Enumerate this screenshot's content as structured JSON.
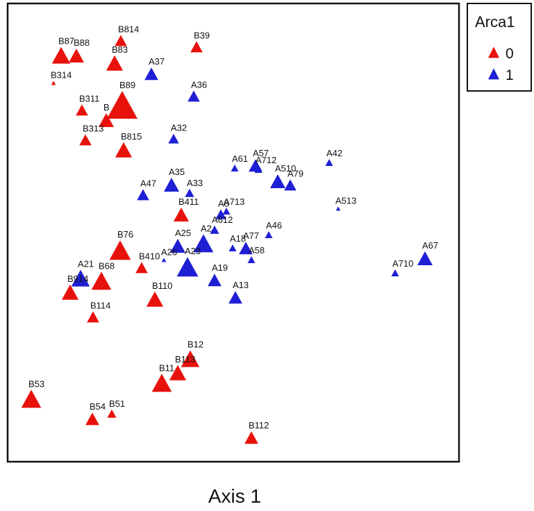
{
  "chart_data": {
    "type": "scatter",
    "xlabel": "Axis 1",
    "xlim": [
      0,
      650
    ],
    "ylim": [
      0,
      660
    ],
    "legend": {
      "title": "Arca1",
      "placement": "right",
      "entries": [
        {
          "label": "0",
          "color": "#e8120c"
        },
        {
          "label": "1",
          "color": "#1f1fd6"
        }
      ]
    },
    "series": [
      {
        "name": "0",
        "color": "#e8120c",
        "points": [
          {
            "label": "B814",
            "x": 163,
            "y": 605,
            "s": 0.8
          },
          {
            "label": "B87",
            "x": 77,
            "y": 583,
            "s": 1.2
          },
          {
            "label": "B88",
            "x": 99,
            "y": 583,
            "s": 1.0
          },
          {
            "label": "B83",
            "x": 154,
            "y": 572,
            "s": 1.1
          },
          {
            "label": "B39",
            "x": 272,
            "y": 596,
            "s": 0.8
          },
          {
            "label": "B314",
            "x": 66,
            "y": 545,
            "s": 0.3
          },
          {
            "label": "B311",
            "x": 107,
            "y": 505,
            "s": 0.8
          },
          {
            "label": "B89",
            "x": 165,
            "y": 510,
            "s": 2.0
          },
          {
            "label": "B",
            "x": 142,
            "y": 490,
            "s": 1.0
          },
          {
            "label": "B313",
            "x": 112,
            "y": 462,
            "s": 0.8
          },
          {
            "label": "B815",
            "x": 167,
            "y": 447,
            "s": 1.1
          },
          {
            "label": "B411",
            "x": 250,
            "y": 354,
            "s": 1.0
          },
          {
            "label": "B76",
            "x": 162,
            "y": 302,
            "s": 1.4
          },
          {
            "label": "B410",
            "x": 193,
            "y": 278,
            "s": 0.8
          },
          {
            "label": "B68",
            "x": 135,
            "y": 258,
            "s": 1.3
          },
          {
            "label": "B914",
            "x": 90,
            "y": 242,
            "s": 1.1
          },
          {
            "label": "B110",
            "x": 212,
            "y": 232,
            "s": 1.1
          },
          {
            "label": "B114",
            "x": 123,
            "y": 207,
            "s": 0.8
          },
          {
            "label": "B12",
            "x": 263,
            "y": 146,
            "s": 1.2
          },
          {
            "label": "B113",
            "x": 245,
            "y": 126,
            "s": 1.1
          },
          {
            "label": "B11",
            "x": 222,
            "y": 111,
            "s": 1.3
          },
          {
            "label": "B53",
            "x": 34,
            "y": 88,
            "s": 1.3
          },
          {
            "label": "B54",
            "x": 122,
            "y": 60,
            "s": 0.9
          },
          {
            "label": "B51",
            "x": 150,
            "y": 68,
            "s": 0.6
          },
          {
            "label": "B112",
            "x": 351,
            "y": 33,
            "s": 0.9
          }
        ]
      },
      {
        "name": "1",
        "color": "#1f1fd6",
        "points": [
          {
            "label": "A37",
            "x": 207,
            "y": 557,
            "s": 0.9
          },
          {
            "label": "A36",
            "x": 268,
            "y": 525,
            "s": 0.8
          },
          {
            "label": "A32",
            "x": 239,
            "y": 464,
            "s": 0.7
          },
          {
            "label": "A61",
            "x": 327,
            "y": 422,
            "s": 0.5
          },
          {
            "label": "A57",
            "x": 357,
            "y": 425,
            "s": 0.9
          },
          {
            "label": "A712",
            "x": 361,
            "y": 420,
            "s": 0.5
          },
          {
            "label": "A42",
            "x": 463,
            "y": 430,
            "s": 0.5
          },
          {
            "label": "A510",
            "x": 389,
            "y": 402,
            "s": 1.0
          },
          {
            "label": "A79",
            "x": 407,
            "y": 397,
            "s": 0.8
          },
          {
            "label": "A35",
            "x": 236,
            "y": 397,
            "s": 1.0
          },
          {
            "label": "A47",
            "x": 195,
            "y": 383,
            "s": 0.8
          },
          {
            "label": "A33",
            "x": 262,
            "y": 386,
            "s": 0.6
          },
          {
            "label": "A513",
            "x": 476,
            "y": 364,
            "s": 0.3
          },
          {
            "label": "A713",
            "x": 315,
            "y": 360,
            "s": 0.5
          },
          {
            "label": "A8",
            "x": 307,
            "y": 355,
            "s": 0.7
          },
          {
            "label": "A46",
            "x": 376,
            "y": 326,
            "s": 0.5
          },
          {
            "label": "A612",
            "x": 298,
            "y": 333,
            "s": 0.6
          },
          {
            "label": "A25",
            "x": 245,
            "y": 309,
            "s": 1.0
          },
          {
            "label": "A18",
            "x": 324,
            "y": 307,
            "s": 0.5
          },
          {
            "label": "A77",
            "x": 343,
            "y": 306,
            "s": 0.9
          },
          {
            "label": "A2",
            "x": 282,
            "y": 312,
            "s": 1.3
          },
          {
            "label": "A58",
            "x": 351,
            "y": 290,
            "s": 0.5
          },
          {
            "label": "A26",
            "x": 225,
            "y": 290,
            "s": 0.3
          },
          {
            "label": "A23",
            "x": 259,
            "y": 278,
            "s": 1.4
          },
          {
            "label": "A67",
            "x": 601,
            "y": 291,
            "s": 1.0
          },
          {
            "label": "A710",
            "x": 558,
            "y": 271,
            "s": 0.5
          },
          {
            "label": "A21",
            "x": 105,
            "y": 262,
            "s": 1.2
          },
          {
            "label": "A19",
            "x": 298,
            "y": 260,
            "s": 0.9
          },
          {
            "label": "A13",
            "x": 328,
            "y": 235,
            "s": 0.9
          }
        ]
      }
    ]
  }
}
